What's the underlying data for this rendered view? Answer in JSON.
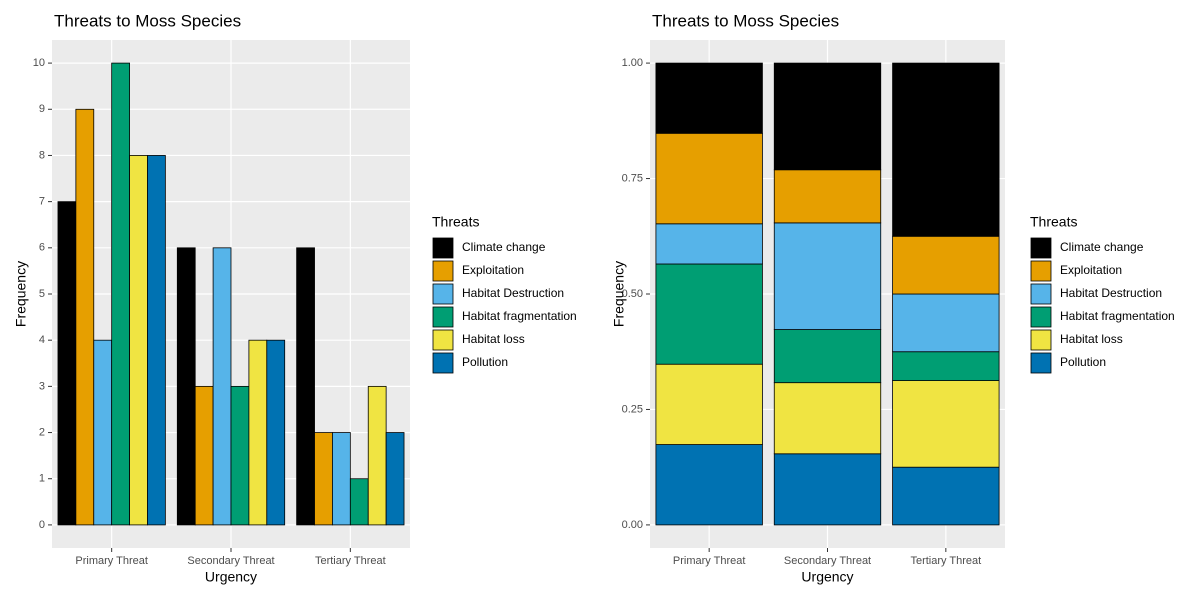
{
  "chart_data": [
    {
      "type": "bar",
      "title": "Threats to Moss Species",
      "x_label": "Urgency",
      "y_label": "Frequency",
      "legend_title": "Threats",
      "categories": [
        "Primary Threat",
        "Secondary Threat",
        "Tertiary Threat"
      ],
      "series": [
        {
          "name": "Climate change",
          "color": "#000000",
          "values": [
            7,
            6,
            6
          ]
        },
        {
          "name": "Exploitation",
          "color": "#E69F00",
          "values": [
            9,
            3,
            2
          ]
        },
        {
          "name": "Habitat Destruction",
          "color": "#56B4E9",
          "values": [
            4,
            6,
            2
          ]
        },
        {
          "name": "Habitat fragmentation",
          "color": "#009E73",
          "values": [
            10,
            3,
            1
          ]
        },
        {
          "name": "Habitat loss",
          "color": "#F0E442",
          "values": [
            8,
            4,
            3
          ]
        },
        {
          "name": "Pollution",
          "color": "#0072B2",
          "values": [
            8,
            4,
            2
          ]
        }
      ],
      "ylim": [
        -0.5,
        10.5
      ],
      "yticks": [
        0,
        1,
        2,
        3,
        4,
        5,
        6,
        7,
        8,
        9,
        10
      ],
      "grid": true
    },
    {
      "type": "stacked_bar",
      "title": "Threats to Moss Species",
      "x_label": "Urgency",
      "y_label": "Frequency",
      "legend_title": "Threats",
      "categories": [
        "Primary Threat",
        "Secondary Threat",
        "Tertiary Threat"
      ],
      "series": [
        {
          "name": "Climate change",
          "color": "#000000",
          "values": [
            0.152,
            0.231,
            0.375
          ]
        },
        {
          "name": "Exploitation",
          "color": "#E69F00",
          "values": [
            0.196,
            0.115,
            0.125
          ]
        },
        {
          "name": "Habitat Destruction",
          "color": "#56B4E9",
          "values": [
            0.087,
            0.231,
            0.125
          ]
        },
        {
          "name": "Habitat fragmentation",
          "color": "#009E73",
          "values": [
            0.217,
            0.115,
            0.0625
          ]
        },
        {
          "name": "Habitat loss",
          "color": "#F0E442",
          "values": [
            0.174,
            0.154,
            0.1875
          ]
        },
        {
          "name": "Pollution",
          "color": "#0072B2",
          "values": [
            0.174,
            0.154,
            0.125
          ]
        }
      ],
      "ylim": [
        -0.05,
        1.05
      ],
      "yticks": [
        {
          "value": 0,
          "label": "0.00"
        },
        {
          "value": 0.25,
          "label": "0.25"
        },
        {
          "value": 0.5,
          "label": "0.50"
        },
        {
          "value": 0.75,
          "label": "0.75"
        },
        {
          "value": 1,
          "label": "1.00"
        }
      ],
      "grid": true
    }
  ]
}
